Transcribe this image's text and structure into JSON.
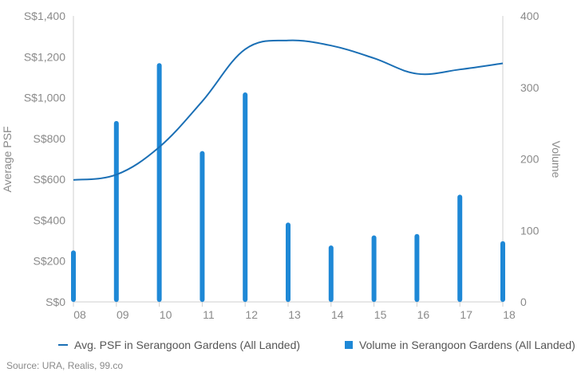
{
  "colors": {
    "line": "#1a6fb5",
    "bar": "#1e88d6",
    "axis": "#cfcfcf",
    "tick_text": "#8a8a8a"
  },
  "legend": {
    "line_label": "Avg. PSF in Serangoon Gardens (All Landed)",
    "bar_label": "Volume in Serangoon Gardens (All Landed)"
  },
  "source": "Source: URA, Realis, 99.co",
  "chart_data": {
    "type": "bar",
    "categories": [
      "08",
      "09",
      "10",
      "11",
      "12",
      "13",
      "14",
      "15",
      "16",
      "17",
      "18"
    ],
    "series": [
      {
        "name": "Avg. PSF in Serangoon Gardens (All Landed)",
        "type": "line",
        "axis": "left",
        "values": [
          597,
          623,
          758,
          982,
          1237,
          1280,
          1255,
          1193,
          1117,
          1138,
          1168
        ]
      },
      {
        "name": "Volume in Serangoon Gardens (All Landed)",
        "type": "bar",
        "axis": "right",
        "values": [
          72,
          253,
          334,
          211,
          293,
          111,
          79,
          93,
          95,
          150,
          85
        ]
      }
    ],
    "ylabel": "Average PSF",
    "y2label": "Volume",
    "ylim": [
      0,
      1400
    ],
    "y2lim": [
      0,
      400
    ],
    "yticks": [
      "S$0",
      "S$200",
      "S$400",
      "S$600",
      "S$800",
      "S$1,000",
      "S$1,200",
      "S$1,400"
    ],
    "y2ticks": [
      "0",
      "100",
      "200",
      "300",
      "400"
    ],
    "grid": false,
    "legend_position": "bottom"
  }
}
